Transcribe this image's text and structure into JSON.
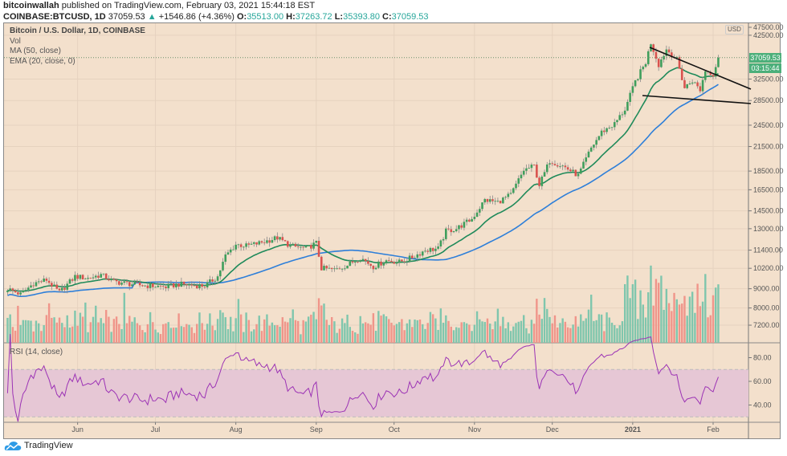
{
  "header": {
    "author": "bitcoinwallah",
    "published": "published on TradingView.com, February 03, 2021 15:44:18 EST",
    "symbol": "COINBASE:BTCUSD, 1D",
    "last": "37059.53",
    "change": "+1546.86 (+4.36%)",
    "o_label": "O:",
    "o": "35513.00",
    "h_label": "H:",
    "h": "37263.72",
    "l_label": "L:",
    "l": "35393.80",
    "c_label": "C:",
    "c": "37059.53"
  },
  "legend": {
    "title": "Bitcoin / U.S. Dollar, 1D, COINBASE",
    "vol": "Vol",
    "ma": "MA (50, close)",
    "ema": "EMA (20, close, 0)",
    "rsi": "RSI (14, close)"
  },
  "price_axis": {
    "currency": "USD",
    "current_price": "37059.53",
    "countdown": "03:15:44"
  },
  "colors": {
    "background": "#f3e0cc",
    "up": "#3f9e5c",
    "down": "#d9534f",
    "vol_up": "#7fc6ad",
    "vol_down": "#f0958a",
    "ema": "#1f8a5a",
    "ma": "#2e7fd9",
    "rsi": "#9c33b5",
    "rsi_band": "#e6c7d5"
  },
  "footer": {
    "brand": "TradingView"
  },
  "chart_data": [
    {
      "type": "candlestick",
      "title": "Bitcoin / U.S. Dollar, 1D, COINBASE",
      "y_scale": "log",
      "y_ticks": [
        7200,
        8000,
        9000,
        10200,
        11400,
        13000,
        14500,
        16500,
        18500,
        21500,
        24500,
        28500,
        32500,
        42500,
        47500
      ],
      "x_ticks": [
        "Jun",
        "Jul",
        "Aug",
        "Sep",
        "Oct",
        "Nov",
        "Dec",
        "2021",
        "Feb"
      ],
      "grid": true,
      "approx_closes": [
        [
          "2020-05-05",
          9000
        ],
        [
          "2020-05-10",
          8700
        ],
        [
          "2020-05-15",
          9300
        ],
        [
          "2020-05-20",
          9500
        ],
        [
          "2020-05-25",
          8800
        ],
        [
          "2020-05-31",
          9700
        ],
        [
          "2020-06-05",
          9600
        ],
        [
          "2020-06-10",
          9800
        ],
        [
          "2020-06-15",
          9400
        ],
        [
          "2020-06-20",
          9300
        ],
        [
          "2020-06-25",
          9200
        ],
        [
          "2020-06-30",
          9150
        ],
        [
          "2020-07-05",
          9100
        ],
        [
          "2020-07-10",
          9250
        ],
        [
          "2020-07-15",
          9200
        ],
        [
          "2020-07-20",
          9160
        ],
        [
          "2020-07-25",
          9700
        ],
        [
          "2020-07-28",
          11000
        ],
        [
          "2020-08-01",
          11800
        ],
        [
          "2020-08-05",
          11700
        ],
        [
          "2020-08-10",
          11900
        ],
        [
          "2020-08-17",
          12300
        ],
        [
          "2020-08-22",
          11700
        ],
        [
          "2020-08-28",
          11500
        ],
        [
          "2020-09-01",
          11900
        ],
        [
          "2020-09-03",
          10200
        ],
        [
          "2020-09-08",
          10100
        ],
        [
          "2020-09-13",
          10400
        ],
        [
          "2020-09-18",
          10900
        ],
        [
          "2020-09-23",
          10300
        ],
        [
          "2020-09-28",
          10700
        ],
        [
          "2020-10-03",
          10600
        ],
        [
          "2020-10-08",
          10900
        ],
        [
          "2020-10-13",
          11400
        ],
        [
          "2020-10-18",
          11500
        ],
        [
          "2020-10-21",
          12800
        ],
        [
          "2020-10-25",
          13000
        ],
        [
          "2020-10-31",
          13800
        ],
        [
          "2020-11-05",
          15500
        ],
        [
          "2020-11-10",
          15300
        ],
        [
          "2020-11-15",
          16000
        ],
        [
          "2020-11-20",
          18600
        ],
        [
          "2020-11-24",
          19100
        ],
        [
          "2020-11-26",
          17000
        ],
        [
          "2020-11-30",
          19700
        ],
        [
          "2020-12-05",
          19100
        ],
        [
          "2020-12-11",
          18000
        ],
        [
          "2020-12-16",
          21300
        ],
        [
          "2020-12-20",
          23500
        ],
        [
          "2020-12-25",
          24700
        ],
        [
          "2020-12-29",
          27000
        ],
        [
          "2021-01-02",
          32000
        ],
        [
          "2021-01-06",
          36000
        ],
        [
          "2021-01-08",
          40600
        ],
        [
          "2021-01-11",
          35500
        ],
        [
          "2021-01-14",
          39000
        ],
        [
          "2021-01-18",
          36600
        ],
        [
          "2021-01-21",
          30800
        ],
        [
          "2021-01-24",
          32200
        ],
        [
          "2021-01-27",
          30400
        ],
        [
          "2021-01-29",
          34300
        ],
        [
          "2021-02-01",
          33500
        ],
        [
          "2021-02-03",
          37059.53
        ]
      ],
      "indicators": [
        "Vol",
        "MA (50, close)",
        "EMA (20, close, 0)"
      ]
    },
    {
      "type": "line",
      "title": "RSI (14, close)",
      "y_ticks": [
        40,
        60,
        80
      ],
      "bands": [
        30,
        70
      ],
      "last_value_approx": 60
    }
  ]
}
